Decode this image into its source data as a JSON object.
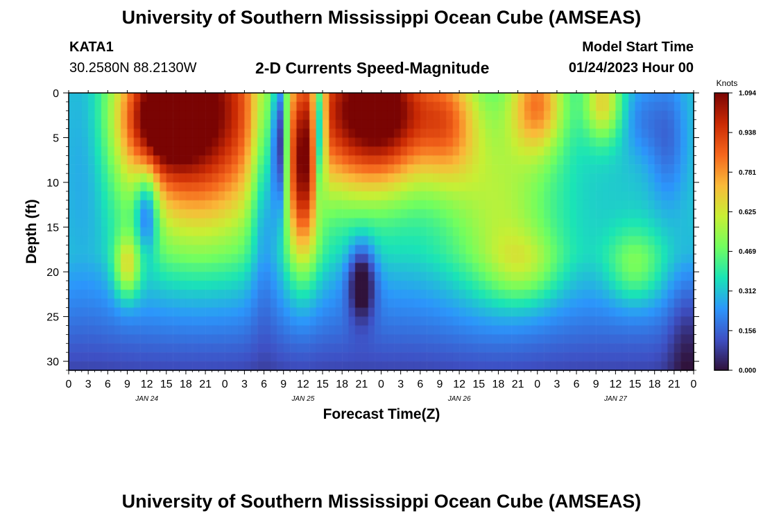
{
  "header": {
    "title": "University of Southern Mississippi Ocean Cube (AMSEAS)",
    "footer_title": "University of Southern Mississippi Ocean Cube (AMSEAS)",
    "station": "KATA1",
    "location": "30.2580N  88.2130W",
    "model_start_label": "Model Start Time",
    "model_start_value": "01/24/2023 Hour 00"
  },
  "chart_data": {
    "type": "heatmap",
    "title": "2-D Currents Speed-Magnitude",
    "xlabel": "Forecast Time(Z)",
    "ylabel": "Depth (ft)",
    "x_range_hours": [
      0,
      96
    ],
    "y_range_ft": [
      0,
      31
    ],
    "x_tick_labels": [
      "0",
      "3",
      "6",
      "9",
      "12",
      "15",
      "18",
      "21",
      "0",
      "3",
      "6",
      "9",
      "12",
      "15",
      "18",
      "21",
      "0",
      "3",
      "6",
      "9",
      "12",
      "15",
      "18",
      "21",
      "0",
      "3",
      "6",
      "9",
      "12",
      "15",
      "18",
      "21",
      "0"
    ],
    "y_ticks": [
      0,
      5,
      10,
      15,
      20,
      25,
      30
    ],
    "day_labels": [
      {
        "hour": 12,
        "label": "JAN 24"
      },
      {
        "hour": 36,
        "label": "JAN 25"
      },
      {
        "hour": 60,
        "label": "JAN 26"
      },
      {
        "hour": 84,
        "label": "JAN 27"
      }
    ],
    "colorbar": {
      "unit": "Knots",
      "min": 0.0,
      "max": 1.094,
      "tick_labels": [
        "1.094",
        "0.938",
        "0.781",
        "0.625",
        "0.469",
        "0.312",
        "0.156",
        "0.000"
      ],
      "colors": [
        "#30123b",
        "#3e50c4",
        "#2c96fb",
        "#1ae4b6",
        "#71fe5f",
        "#c8ef34",
        "#faba39",
        "#f5661c",
        "#ca2a04",
        "#7a0403"
      ]
    },
    "features": [
      {
        "hour": 20,
        "depth": 1,
        "speed_kn": 1.05,
        "desc": "strong surface maximum"
      },
      {
        "hour": 12,
        "depth": 13,
        "speed_kn": 0.12,
        "desc": "low-speed core"
      },
      {
        "hour": 9,
        "depth": 19.5,
        "speed_kn": 0.62,
        "desc": "subsurface maximum"
      },
      {
        "hour": 32.5,
        "depth": 4,
        "speed_kn": 0.12,
        "desc": "surface minimum"
      },
      {
        "hour": 35,
        "depth": 12,
        "speed_kn": 0.7,
        "desc": "narrow jet"
      },
      {
        "hour": 45,
        "depth": 21,
        "speed_kn": 0.02,
        "desc": "subsurface minimum"
      },
      {
        "hour": 44,
        "depth": 3,
        "speed_kn": 0.95,
        "desc": "surface maximum"
      },
      {
        "hour": 92,
        "depth": 5,
        "speed_kn": 0.2,
        "desc": "low speed"
      },
      {
        "hour": 87,
        "depth": 19.5,
        "speed_kn": 0.52,
        "desc": "subsurface maximum"
      }
    ]
  }
}
